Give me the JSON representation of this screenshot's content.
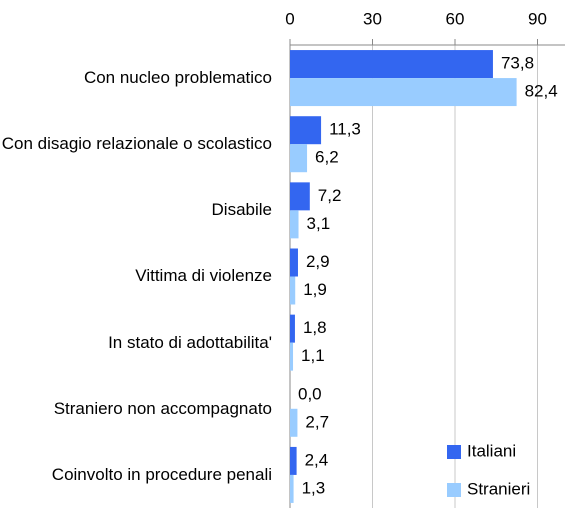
{
  "chart_data": {
    "type": "bar",
    "orientation": "horizontal",
    "categories": [
      "Con nucleo problematico",
      "Con disagio relazionale o scolastico",
      "Disabile",
      "Vittima di violenze",
      "In stato di adottabilita'",
      "Straniero non accompagnato",
      "Coinvolto in procedure penali"
    ],
    "series": [
      {
        "name": "Italiani",
        "color": "#3366f0",
        "values": [
          73.8,
          11.3,
          7.2,
          2.9,
          1.8,
          0.0,
          2.4
        ],
        "value_labels": [
          "73,8",
          "11,3",
          "7,2",
          "2,9",
          "1,8",
          "0,0",
          "2,4"
        ]
      },
      {
        "name": "Stranieri",
        "color": "#99ccff",
        "values": [
          82.4,
          6.2,
          3.1,
          1.9,
          1.1,
          2.7,
          1.3
        ],
        "value_labels": [
          "82,4",
          "6,2",
          "3,1",
          "1,9",
          "1,1",
          "2,7",
          "1,3"
        ]
      }
    ],
    "xlim": [
      0,
      100
    ],
    "xticks": [
      0,
      30,
      60,
      90
    ],
    "grid": true,
    "legend": "lower right"
  }
}
